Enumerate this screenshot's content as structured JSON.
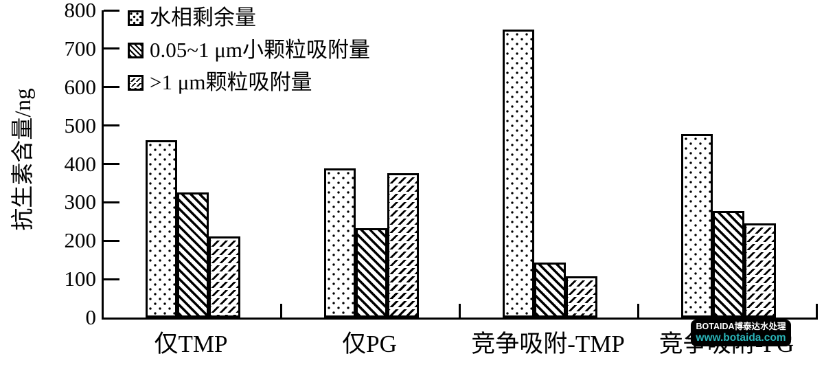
{
  "chart_data": {
    "type": "bar",
    "title": "",
    "xlabel": "",
    "ylabel": "抗生素含量/ng",
    "ylim": [
      0,
      800
    ],
    "ytick_step": 100,
    "grid": false,
    "legend_position": "upper-left",
    "categories": [
      "仅TMP",
      "仅PG",
      "竞争吸附-TMP",
      "竞争吸附-PG"
    ],
    "series": [
      {
        "name": "水相剩余量",
        "hatch": "dots",
        "values": [
          462,
          388,
          750,
          478
        ]
      },
      {
        "name": "0.05~1 μm小颗粒吸附量",
        "hatch": "backslash-lines",
        "values": [
          325,
          232,
          143,
          277
        ]
      },
      {
        "name": ">1 μm颗粒吸附量",
        "hatch": "slash-dashes",
        "values": [
          212,
          375,
          107,
          245
        ]
      }
    ],
    "bar_fill": "#ffffff",
    "bar_edge_color": "#000000"
  },
  "watermark": {
    "line1": "BOTAIDA博泰达水处理",
    "line2": "www.botaida.com",
    "bg_color": "#000000",
    "line1_color": "#ffffff",
    "line2_color": "#2ab4b8"
  }
}
